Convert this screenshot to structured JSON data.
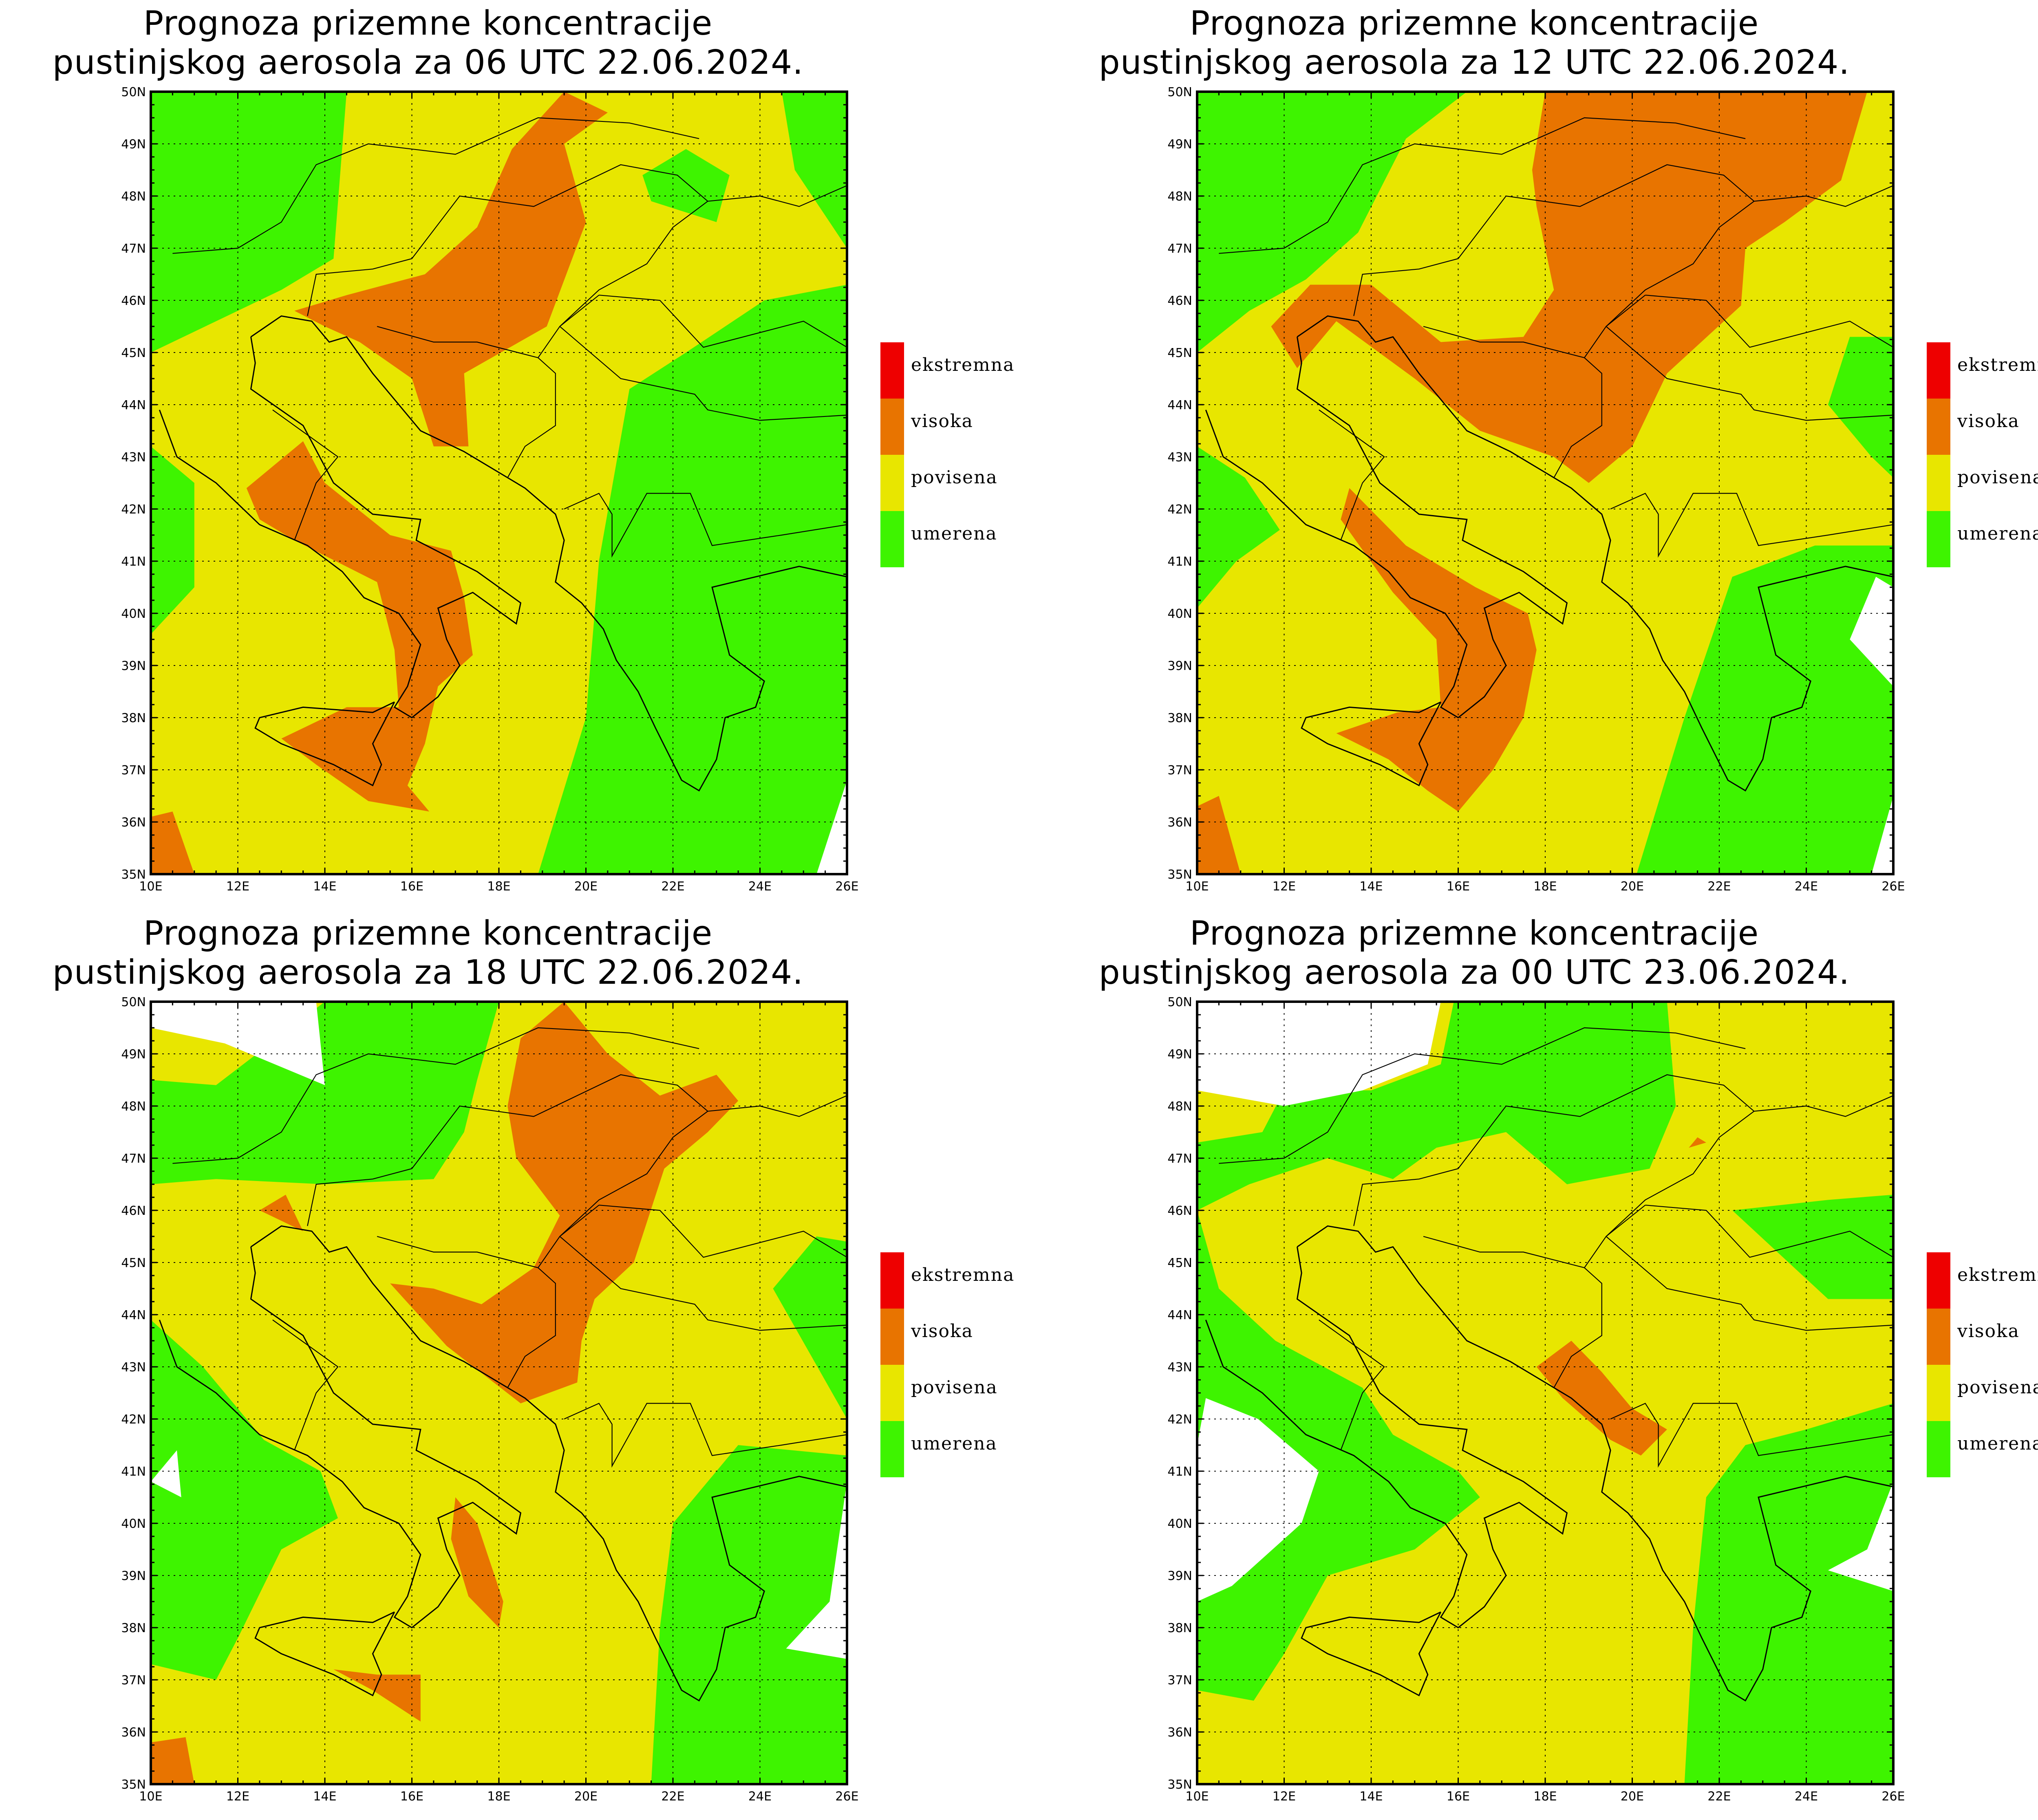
{
  "colors": {
    "ekstremna": "#ee0000",
    "visoka": "#e87400",
    "povisena": "#e8e600",
    "umerena": "#3ef400",
    "background": "#ffffff",
    "frame": "#000000"
  },
  "legend": [
    {
      "label": "ekstremna",
      "color": "#ee0000"
    },
    {
      "label": "visoka",
      "color": "#e87400"
    },
    {
      "label": "povisena",
      "color": "#e8e600"
    },
    {
      "label": "umerena",
      "color": "#3ef400"
    }
  ],
  "axes": {
    "lon_ticks": [
      "10E",
      "12E",
      "14E",
      "16E",
      "18E",
      "20E",
      "22E",
      "24E",
      "26E"
    ],
    "lat_ticks": [
      "35N",
      "36N",
      "37N",
      "38N",
      "39N",
      "40N",
      "41N",
      "42N",
      "43N",
      "44N",
      "45N",
      "46N",
      "47N",
      "48N",
      "49N",
      "50N"
    ],
    "lon_range": [
      10,
      26
    ],
    "lat_range": [
      35,
      50
    ]
  },
  "panels": [
    {
      "title_line1": "Prognoza prizemne koncentracije",
      "title_line2": "pustinjskog aerosola za 06 UTC 22.06.2024."
    },
    {
      "title_line1": "Prognoza prizemne koncentracije",
      "title_line2": "pustinjskog aerosola za 12 UTC 22.06.2024."
    },
    {
      "title_line1": "Prognoza prizemne koncentracije",
      "title_line2": "pustinjskog aerosola za 18 UTC 22.06.2024."
    },
    {
      "title_line1": "Prognoza prizemne koncentracije",
      "title_line2": "pustinjskog aerosola za 00 UTC 23.06.2024."
    }
  ]
}
